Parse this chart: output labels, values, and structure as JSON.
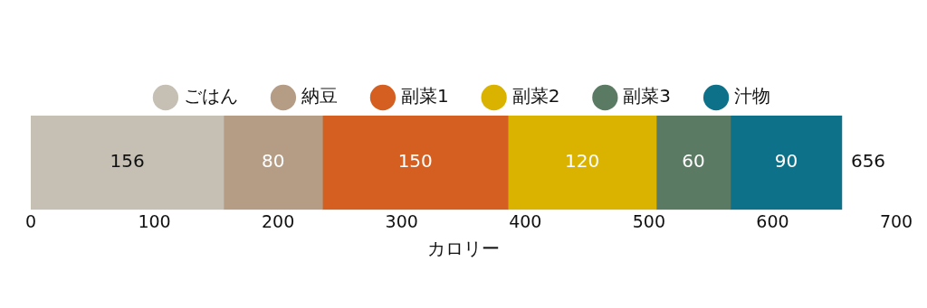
{
  "chart_data": {
    "type": "bar",
    "orientation": "horizontal",
    "stacked": true,
    "categories": [
      null
    ],
    "xlabel": "カロリー",
    "xlim": [
      0,
      700
    ],
    "xticks": [
      0,
      100,
      200,
      300,
      400,
      500,
      600,
      700
    ],
    "grid": false,
    "legend": "top",
    "marker": "circle",
    "data_labels": true,
    "totals": [
      "656"
    ],
    "series": [
      {
        "name": "ごはん",
        "color": "#c5c0b3",
        "values": [
          156
        ]
      },
      {
        "name": "納豆",
        "color": "#b59c84",
        "values": [
          80
        ]
      },
      {
        "name": "副菜1",
        "color": "#d45f20",
        "values": [
          150
        ]
      },
      {
        "name": "副菜2",
        "color": "#d9b300",
        "values": [
          120
        ]
      },
      {
        "name": "副菜3",
        "color": "#5b7a63",
        "values": [
          60
        ]
      },
      {
        "name": "汁物",
        "color": "#0e718a",
        "values": [
          90
        ]
      }
    ]
  }
}
